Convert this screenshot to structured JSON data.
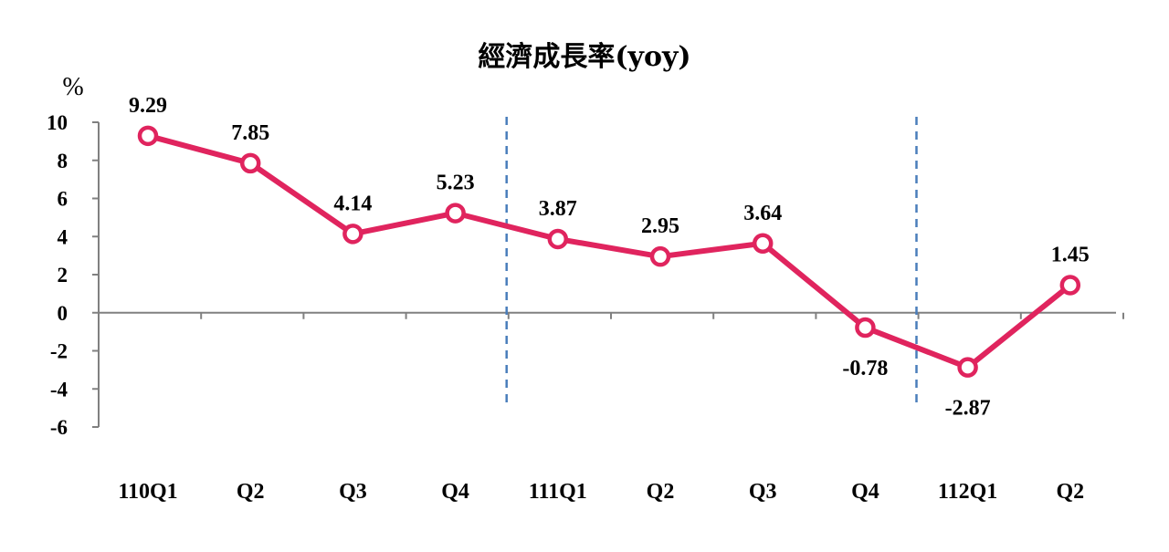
{
  "chart_data": {
    "type": "line",
    "title": "經濟成長率(yoy)",
    "ylabel": "%",
    "xlabel": "",
    "categories": [
      "110Q1",
      "Q2",
      "Q3",
      "Q4",
      "111Q1",
      "Q2",
      "Q3",
      "Q4",
      "112Q1",
      "Q2"
    ],
    "series": [
      {
        "values": [
          9.29,
          7.85,
          4.14,
          5.23,
          3.87,
          2.95,
          3.64,
          -0.78,
          -2.87,
          1.45
        ]
      }
    ],
    "data_labels": [
      "9.29",
      "7.85",
      "4.14",
      "5.23",
      "3.87",
      "2.95",
      "3.64",
      "-0.78",
      "-2.87",
      "1.45"
    ],
    "ylim": [
      -6,
      10
    ],
    "yticks": [
      "10",
      "8",
      "6",
      "4",
      "2",
      "0",
      "-2",
      "-4",
      "-6"
    ],
    "grid": false,
    "year_dividers_after": [
      "Q4",
      "Q4"
    ],
    "colors": {
      "line": "#e0245e",
      "marker_fill": "#ffffff",
      "divider": "#4a7ebb",
      "axis": "#808080"
    }
  }
}
